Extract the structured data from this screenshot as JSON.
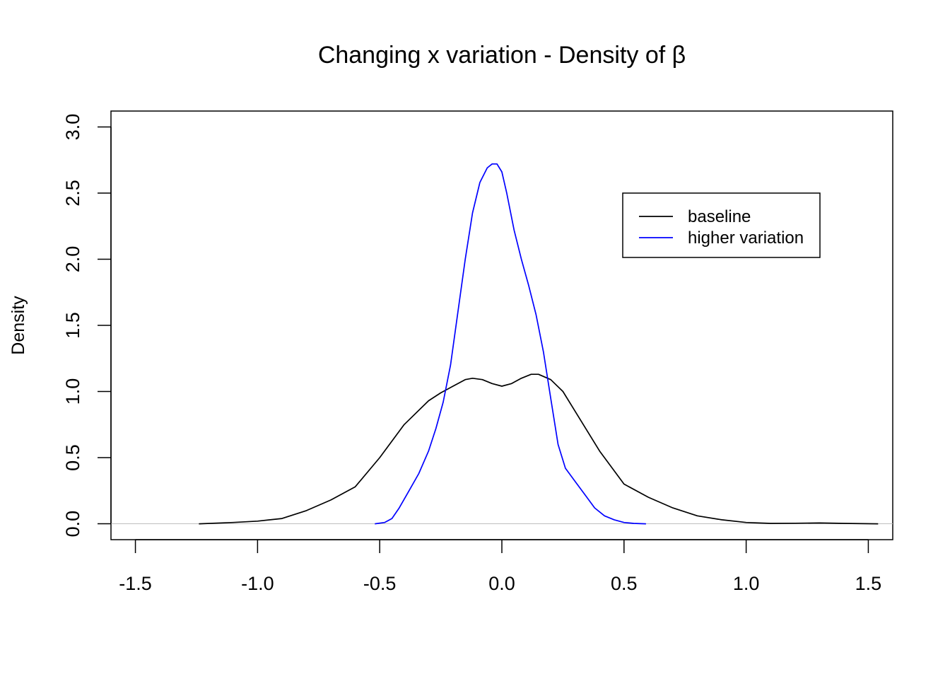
{
  "chart_data": {
    "type": "line",
    "title": "Changing x variation - Density of β",
    "xlabel": "",
    "ylabel": "Density",
    "xlim": [
      -1.6,
      1.6
    ],
    "ylim": [
      -0.12,
      3.12
    ],
    "x_ticks": [
      -1.5,
      -1.0,
      -0.5,
      0.0,
      0.5,
      1.0,
      1.5
    ],
    "x_tick_labels": [
      "-1.5",
      "-1.0",
      "-0.5",
      "0.0",
      "0.5",
      "1.0",
      "1.5"
    ],
    "y_ticks": [
      0.0,
      0.5,
      1.0,
      1.5,
      2.0,
      2.5,
      3.0
    ],
    "y_tick_labels": [
      "0.0",
      "0.5",
      "1.0",
      "1.5",
      "2.0",
      "2.5",
      "3.0"
    ],
    "grid": false,
    "baseline_at_zero": true,
    "legend": {
      "position": "top-right",
      "entries": [
        "baseline",
        "higher variation"
      ]
    },
    "series": [
      {
        "name": "baseline",
        "color": "#000000",
        "x": [
          -1.24,
          -1.1,
          -1.0,
          -0.9,
          -0.8,
          -0.7,
          -0.6,
          -0.5,
          -0.4,
          -0.3,
          -0.25,
          -0.2,
          -0.15,
          -0.12,
          -0.08,
          -0.04,
          0.0,
          0.04,
          0.08,
          0.12,
          0.15,
          0.2,
          0.25,
          0.3,
          0.4,
          0.5,
          0.6,
          0.7,
          0.8,
          0.9,
          1.0,
          1.1,
          1.2,
          1.3,
          1.4,
          1.54
        ],
        "y": [
          0.0,
          0.01,
          0.02,
          0.04,
          0.1,
          0.18,
          0.28,
          0.5,
          0.75,
          0.93,
          0.99,
          1.04,
          1.09,
          1.1,
          1.09,
          1.06,
          1.04,
          1.06,
          1.1,
          1.13,
          1.13,
          1.09,
          1.0,
          0.85,
          0.55,
          0.3,
          0.2,
          0.12,
          0.06,
          0.03,
          0.01,
          0.003,
          0.004,
          0.006,
          0.003,
          0.0
        ]
      },
      {
        "name": "higher variation",
        "color": "#0000ff",
        "x": [
          -0.52,
          -0.48,
          -0.45,
          -0.42,
          -0.38,
          -0.34,
          -0.3,
          -0.27,
          -0.24,
          -0.21,
          -0.18,
          -0.15,
          -0.12,
          -0.09,
          -0.06,
          -0.04,
          -0.02,
          0.0,
          0.02,
          0.05,
          0.08,
          0.11,
          0.14,
          0.17,
          0.2,
          0.23,
          0.26,
          0.3,
          0.34,
          0.38,
          0.42,
          0.46,
          0.5,
          0.54,
          0.59
        ],
        "y": [
          0.0,
          0.01,
          0.04,
          0.12,
          0.25,
          0.38,
          0.55,
          0.72,
          0.92,
          1.2,
          1.6,
          2.0,
          2.35,
          2.58,
          2.69,
          2.72,
          2.72,
          2.66,
          2.5,
          2.22,
          2.0,
          1.8,
          1.58,
          1.3,
          0.95,
          0.6,
          0.42,
          0.32,
          0.22,
          0.12,
          0.06,
          0.03,
          0.01,
          0.003,
          0.0
        ]
      }
    ]
  }
}
